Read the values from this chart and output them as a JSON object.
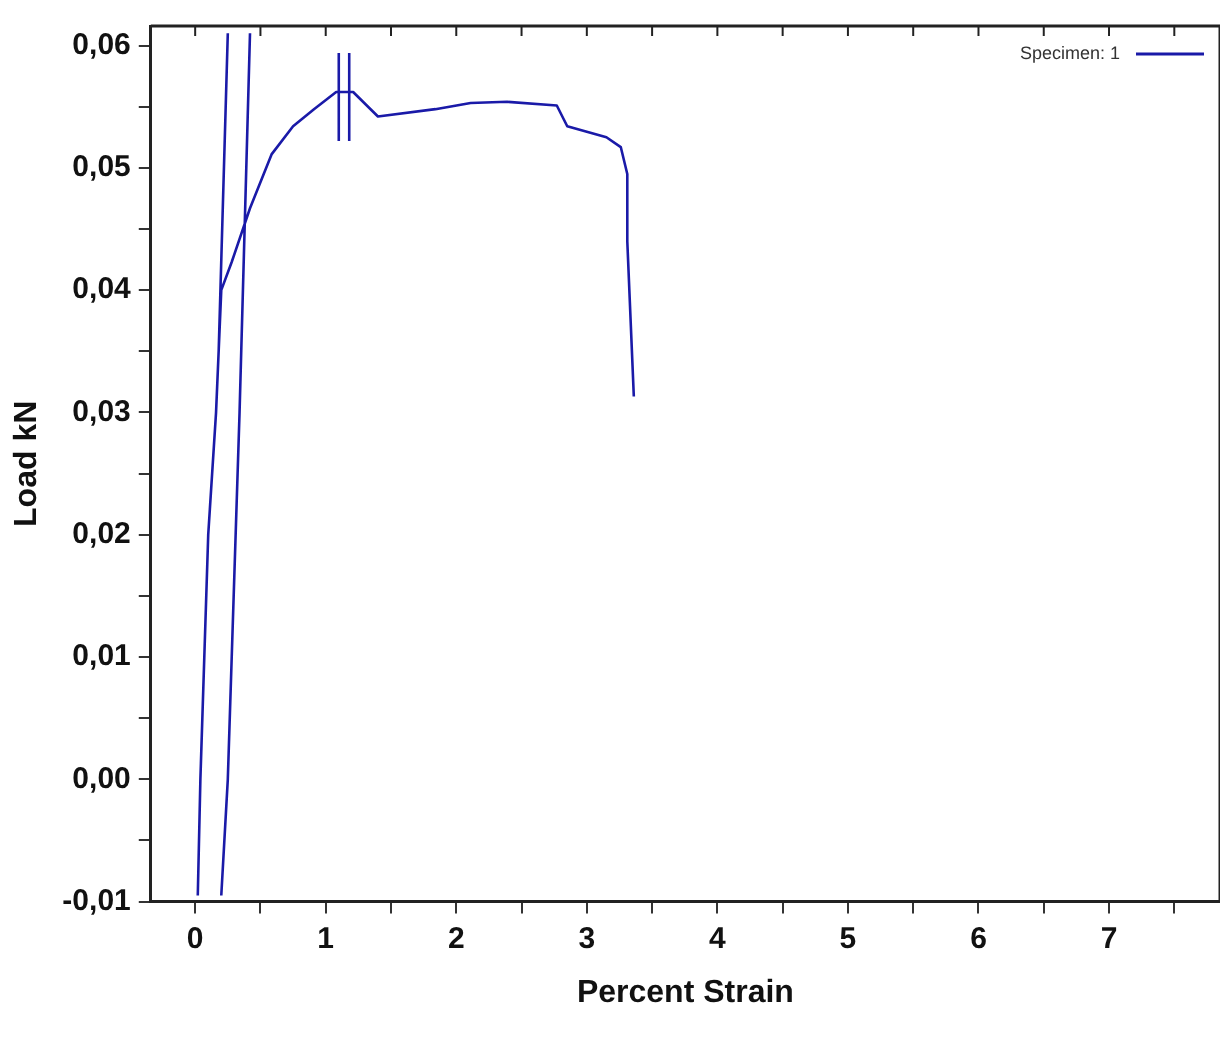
{
  "chart_data": {
    "type": "line",
    "xlabel": "Percent Strain",
    "ylabel": "Load kN",
    "xlim": [
      -0.34,
      7.85
    ],
    "ylim": [
      -0.01,
      0.0616
    ],
    "xticks": [
      0,
      {
        "value": 0.5,
        "label": null
      },
      1,
      {
        "value": 1.5,
        "label": null
      },
      2,
      {
        "value": 2.5,
        "label": null
      },
      3,
      {
        "value": 3.5,
        "label": null
      },
      4,
      {
        "value": 4.5,
        "label": null
      },
      5,
      {
        "value": 5.5,
        "label": null
      },
      6,
      {
        "value": 6.5,
        "label": null
      },
      7,
      {
        "value": 7.5,
        "label": null
      }
    ],
    "yticks": [
      {
        "value": -0.01,
        "label": "-0,01"
      },
      {
        "value": -0.005,
        "label": null
      },
      {
        "value": 0,
        "label": "0,00"
      },
      {
        "value": 0.005,
        "label": null
      },
      {
        "value": 0.01,
        "label": "0,01"
      },
      {
        "value": 0.015,
        "label": null
      },
      {
        "value": 0.02,
        "label": "0,02"
      },
      {
        "value": 0.025,
        "label": null
      },
      {
        "value": 0.03,
        "label": "0,03"
      },
      {
        "value": 0.035,
        "label": null
      },
      {
        "value": 0.04,
        "label": "0,04"
      },
      {
        "value": 0.045,
        "label": null
      },
      {
        "value": 0.05,
        "label": "0,05"
      },
      {
        "value": 0.055,
        "label": null
      },
      {
        "value": 0.06,
        "label": "0,06"
      }
    ],
    "grid": false,
    "legend": "top right",
    "marker": "none",
    "line_style": "solid",
    "series": [
      {
        "name": "Specimen: 1",
        "color": "#1a1aa8",
        "x": [
          0.02,
          0.04,
          0.07,
          0.1,
          0.16,
          0.2,
          0.28,
          0.42,
          0.585,
          0.75,
          0.91,
          1.08,
          1.21,
          1.4,
          1.84,
          2.11,
          2.39,
          2.77,
          2.85,
          3.15,
          3.26,
          3.31,
          3.31,
          3.36,
          null,
          0.2,
          0.25,
          0.31,
          0.34,
          0.42,
          null,
          0.18,
          0.25,
          null,
          1.1,
          1.1,
          null,
          1.18,
          1.18
        ],
        "values": [
          -0.0095,
          0,
          0.01,
          0.02,
          0.03,
          0.04,
          0.0423,
          0.0467,
          0.0511,
          0.0534,
          0.0548,
          0.0562,
          0.0562,
          0.0542,
          0.0548,
          0.0553,
          0.0554,
          0.0551,
          0.0534,
          0.0525,
          0.0517,
          0.0495,
          0.044,
          0.0313,
          null,
          -0.0095,
          0,
          0.02,
          0.03,
          0.061,
          null,
          0.035,
          0.061,
          null,
          0.0522,
          0.0594,
          null,
          0.0522,
          0.0594
        ]
      }
    ]
  }
}
